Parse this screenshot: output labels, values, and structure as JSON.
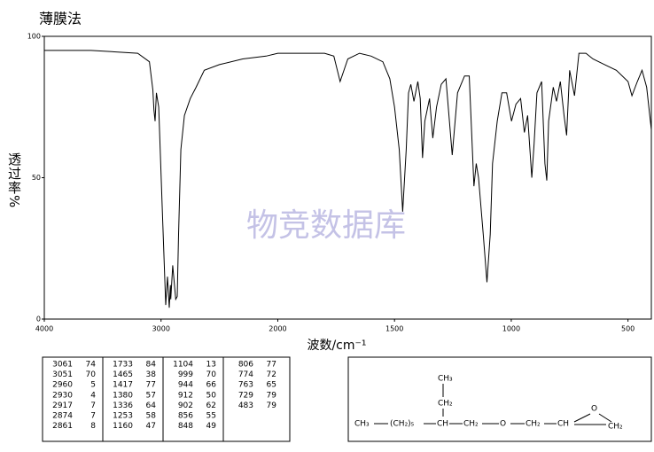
{
  "chart_data": {
    "type": "line",
    "title": "薄膜法",
    "y_label": "透过率%",
    "x_label": "波数/cm⁻¹",
    "watermark": "物竞数据库",
    "x": [
      4000,
      3600,
      3200,
      3100,
      3070,
      3061,
      3051,
      3040,
      3020,
      2990,
      2960,
      2945,
      2930,
      2920,
      2917,
      2900,
      2874,
      2861,
      2850,
      2830,
      2800,
      2750,
      2700,
      2630,
      2500,
      2300,
      2100,
      2000,
      1900,
      1800,
      1760,
      1733,
      1700,
      1650,
      1600,
      1550,
      1520,
      1500,
      1480,
      1465,
      1450,
      1440,
      1430,
      1417,
      1400,
      1390,
      1380,
      1370,
      1350,
      1336,
      1320,
      1300,
      1280,
      1253,
      1230,
      1200,
      1180,
      1160,
      1150,
      1140,
      1120,
      1104,
      1090,
      1080,
      1060,
      1040,
      1020,
      999,
      980,
      960,
      944,
      930,
      912,
      902,
      890,
      870,
      856,
      848,
      840,
      820,
      806,
      790,
      774,
      763,
      750,
      729,
      710,
      680,
      650,
      600,
      550,
      500,
      483,
      460,
      440,
      420,
      400
    ],
    "values": [
      95,
      95,
      94,
      91,
      81,
      74,
      70,
      80,
      75,
      40,
      5,
      15,
      4,
      12,
      7,
      19,
      7,
      8,
      30,
      60,
      72,
      78,
      82,
      88,
      90,
      92,
      93,
      94,
      94,
      94,
      93,
      84,
      92,
      94,
      93,
      91,
      85,
      75,
      60,
      38,
      60,
      80,
      83,
      77,
      84,
      78,
      57,
      70,
      78,
      64,
      75,
      83,
      85,
      58,
      80,
      86,
      86,
      47,
      55,
      50,
      30,
      13,
      30,
      55,
      70,
      80,
      80,
      70,
      76,
      78,
      66,
      72,
      50,
      62,
      80,
      84,
      55,
      49,
      70,
      82,
      77,
      84,
      72,
      65,
      88,
      79,
      94,
      94,
      92,
      90,
      88,
      84,
      79,
      84,
      88,
      82,
      67
    ],
    "color": "#000000",
    "xlim": [
      4000,
      400
    ],
    "ylim": [
      0,
      100
    ],
    "xticks": [
      4000,
      3000,
      2000,
      1500,
      1000,
      500
    ],
    "yticks": [
      0,
      50,
      100
    ],
    "x_scale_change": 2000
  },
  "peak_table": {
    "columns": [
      [
        [
          3061,
          74
        ],
        [
          3051,
          70
        ],
        [
          2960,
          5
        ],
        [
          2930,
          4
        ],
        [
          2917,
          7
        ],
        [
          2874,
          7
        ],
        [
          2861,
          8
        ]
      ],
      [
        [
          1733,
          84
        ],
        [
          1465,
          38
        ],
        [
          1417,
          77
        ],
        [
          1380,
          57
        ],
        [
          1336,
          64
        ],
        [
          1253,
          58
        ],
        [
          1160,
          47
        ]
      ],
      [
        [
          1104,
          13
        ],
        [
          999,
          70
        ],
        [
          944,
          66
        ],
        [
          912,
          50
        ],
        [
          902,
          62
        ],
        [
          856,
          55
        ],
        [
          848,
          49
        ]
      ],
      [
        [
          806,
          77
        ],
        [
          774,
          72
        ],
        [
          763,
          65
        ],
        [
          729,
          79
        ],
        [
          483,
          79
        ]
      ]
    ]
  },
  "structure": {
    "labels": [
      "CH₃",
      "(CH₂)₅",
      "CH",
      "CH₂",
      "O",
      "CH₂",
      "CH",
      "CH₂",
      "O",
      "CH₂",
      "CH₃"
    ]
  }
}
